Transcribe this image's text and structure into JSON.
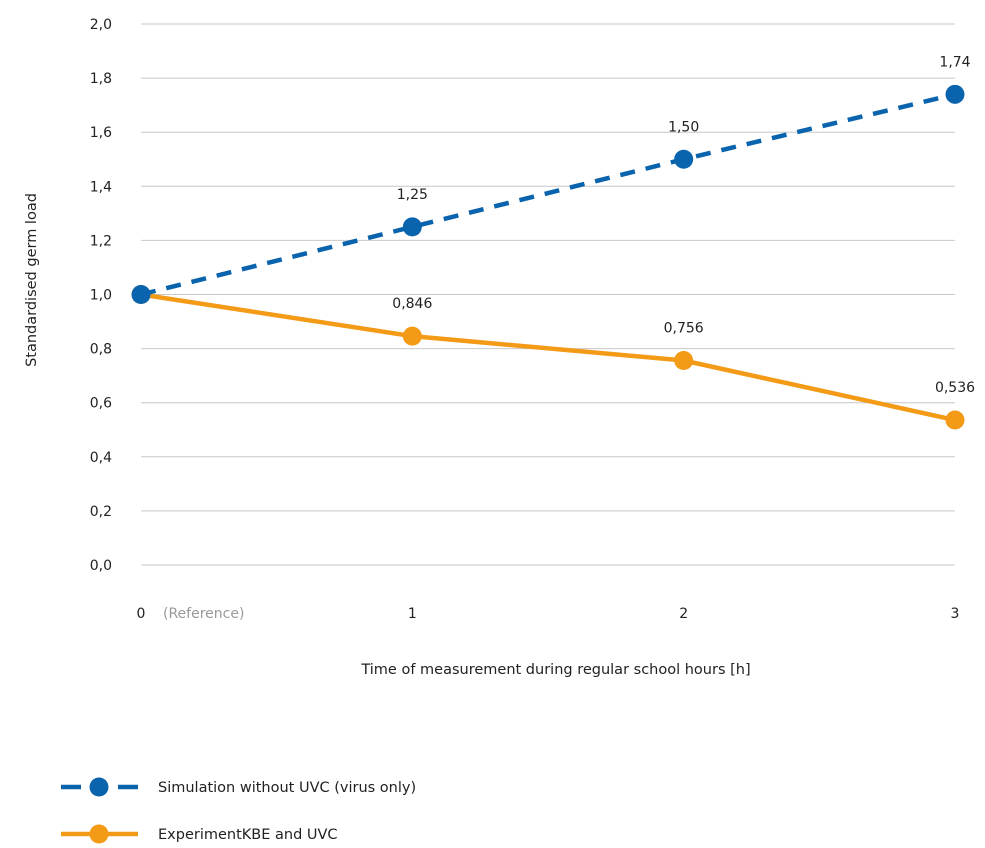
{
  "chart_data": {
    "type": "line",
    "x": [
      0,
      1,
      2,
      3
    ],
    "x_tick_labels": [
      "0",
      "1",
      "2",
      "3"
    ],
    "x_tick_note": "(Reference)",
    "xlabel": "Time of measurement during regular school hours [h]",
    "ylabel": "Standardised germ load",
    "ylim": [
      0,
      2
    ],
    "y_ticks": [
      0,
      0.2,
      0.4,
      0.6,
      0.8,
      1.0,
      1.2,
      1.4,
      1.6,
      1.8,
      2.0
    ],
    "y_tick_labels": [
      "0,0",
      "0,2",
      "0,4",
      "0,6",
      "0,8",
      "1,0",
      "1,2",
      "1,4",
      "1,6",
      "1,8",
      "2,0"
    ],
    "grid": "horizontal",
    "legend_position": "bottom-left",
    "series": [
      {
        "name": "Simulation without UVC (virus only)",
        "values": [
          1.0,
          1.25,
          1.5,
          1.74
        ],
        "data_labels": [
          null,
          "1,25",
          "1,50",
          "1,74"
        ],
        "color": "#0a64ad",
        "line_style": "dashed"
      },
      {
        "name": "ExperimentKBE and UVC",
        "values": [
          1.0,
          0.846,
          0.756,
          0.536
        ],
        "data_labels": [
          null,
          "0,846",
          "0,756",
          "0,536"
        ],
        "color": "#f39a16",
        "line_style": "solid"
      }
    ]
  }
}
